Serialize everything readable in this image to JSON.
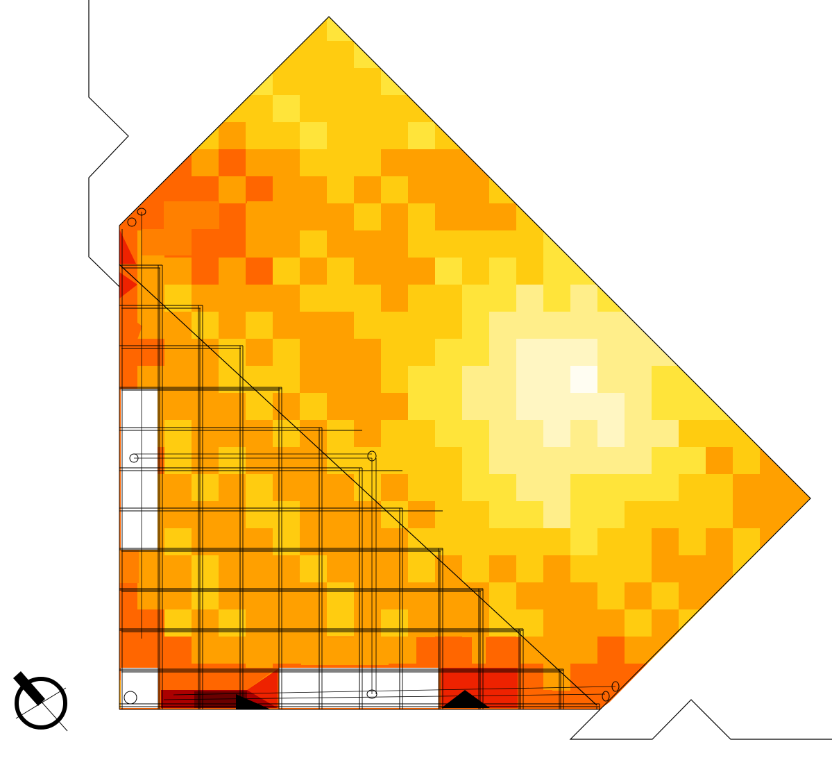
{
  "view": {
    "title": "",
    "colors": {
      "background": "#ffffff",
      "line": "#000000",
      "scale": [
        "#fffdf2",
        "#fff6c2",
        "#ffee8a",
        "#ffe43a",
        "#ffcc10",
        "#ffa000",
        "#ff6600",
        "#ee2200",
        "#7a0000",
        "#000000"
      ]
    },
    "north_arrow": {
      "icon": "north-arrow-icon"
    },
    "zones": {
      "peak_regions": [
        "west-wall",
        "south-wall",
        "south-west-corner"
      ],
      "bright_region": "east-interior",
      "glazing_panels": [
        "west-glazing",
        "south-glazing"
      ]
    }
  }
}
